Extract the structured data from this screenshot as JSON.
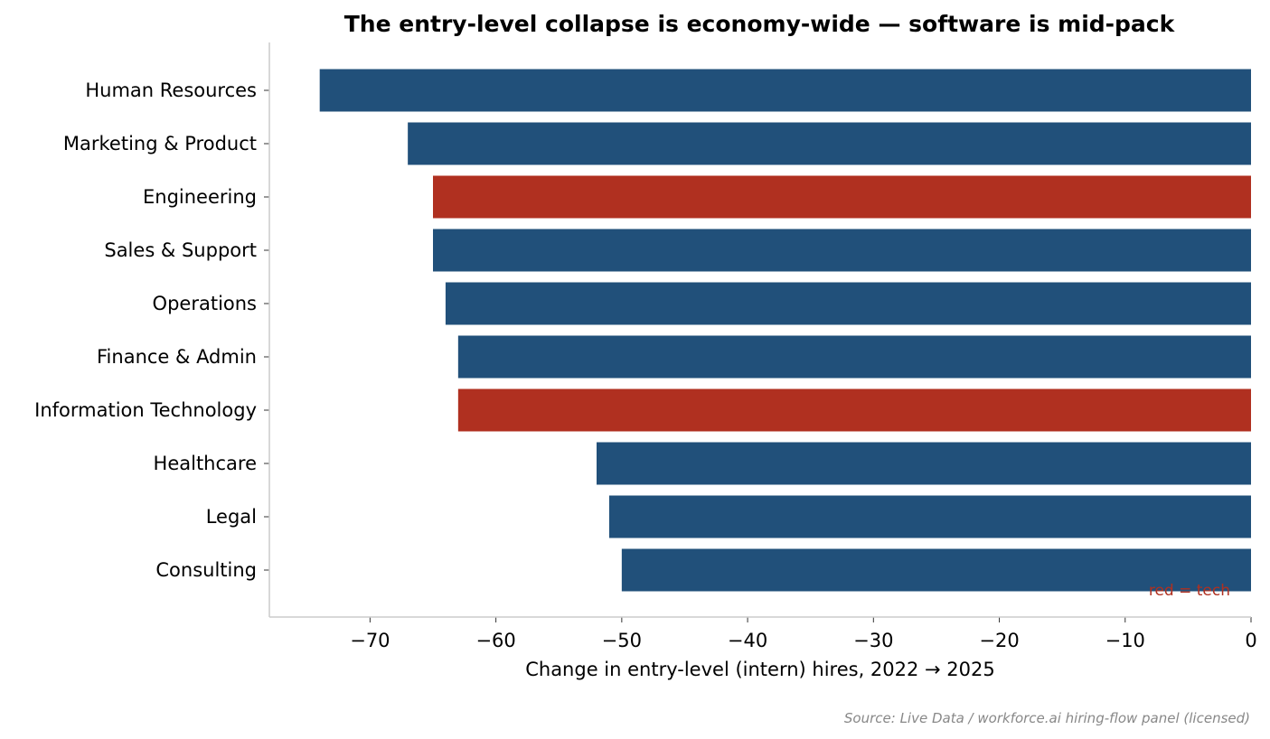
{
  "chart_data": {
    "type": "bar",
    "orientation": "horizontal",
    "title": "The entry-level collapse is economy-wide — software is mid-pack",
    "xlabel": "Change in entry-level (intern) hires, 2022 → 2025",
    "ylabel": "",
    "xlim": [
      -78,
      0
    ],
    "xticks": [
      -70,
      -60,
      -50,
      -40,
      -30,
      -20,
      -10,
      0
    ],
    "xtick_labels": [
      "−70",
      "−60",
      "−50",
      "−40",
      "−30",
      "−20",
      "−10",
      "0"
    ],
    "categories": [
      "Human Resources",
      "Marketing & Product",
      "Engineering",
      "Sales & Support",
      "Operations",
      "Finance & Admin",
      "Information Technology",
      "Healthcare",
      "Legal",
      "Consulting"
    ],
    "values": [
      -74,
      -67,
      -65,
      -65,
      -64,
      -63,
      -63,
      -52,
      -51,
      -50
    ],
    "is_tech": [
      false,
      false,
      true,
      false,
      false,
      false,
      true,
      false,
      false,
      false
    ],
    "colors": {
      "default": "#21507a",
      "tech": "#b03020",
      "axis": "#cccccc"
    },
    "annotation": "red = tech",
    "source": "Source: Live Data / workforce.ai hiring-flow panel (licensed)",
    "grid": false
  }
}
